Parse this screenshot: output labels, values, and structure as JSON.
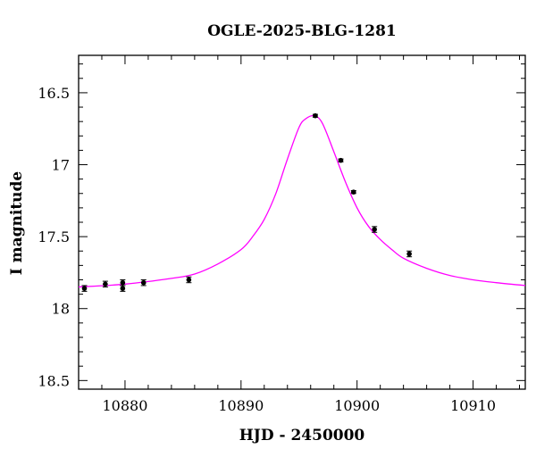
{
  "chart_data": {
    "type": "scatter",
    "title": "OGLE-2025-BLG-1281",
    "xlabel": "HJD - 2450000",
    "ylabel": "I magnitude",
    "xlim": [
      10876,
      10914.5
    ],
    "ylim": [
      18.56,
      16.24
    ],
    "y_inverted": true,
    "x_ticks": [
      10880,
      10890,
      10900,
      10910
    ],
    "y_ticks": [
      16.5,
      17,
      17.5,
      18,
      18.5
    ],
    "x_tick_labels": [
      "10880",
      "10890",
      "10900",
      "10910"
    ],
    "y_tick_labels": [
      "16.5",
      "17",
      "17.5",
      "18",
      "18.5"
    ],
    "series": [
      {
        "kind": "points_with_errorbars",
        "color": "#000000",
        "x": [
          10876.5,
          10878.3,
          10879.8,
          10879.8,
          10881.6,
          10885.5,
          10896.4,
          10898.6,
          10899.7,
          10901.5,
          10904.5
        ],
        "y": [
          17.86,
          17.83,
          17.86,
          17.82,
          17.82,
          17.8,
          16.66,
          16.97,
          17.19,
          17.45,
          17.62
        ],
        "yerr": [
          0.02,
          0.02,
          0.02,
          0.02,
          0.02,
          0.02,
          0.01,
          0.01,
          0.01,
          0.02,
          0.02
        ]
      },
      {
        "kind": "model_curve",
        "color": "#ff00ff",
        "x": [
          10876,
          10880,
          10884,
          10886,
          10888,
          10890,
          10891,
          10892,
          10893,
          10894,
          10895,
          10895.6,
          10896.3,
          10897,
          10898,
          10899,
          10900,
          10901,
          10902,
          10903,
          10904,
          10906,
          10908,
          10910,
          10912,
          10914.5
        ],
        "y": [
          17.85,
          17.83,
          17.79,
          17.76,
          17.69,
          17.59,
          17.5,
          17.38,
          17.2,
          16.96,
          16.74,
          16.68,
          16.66,
          16.71,
          16.91,
          17.12,
          17.3,
          17.43,
          17.52,
          17.59,
          17.65,
          17.72,
          17.77,
          17.8,
          17.82,
          17.84
        ]
      }
    ]
  }
}
